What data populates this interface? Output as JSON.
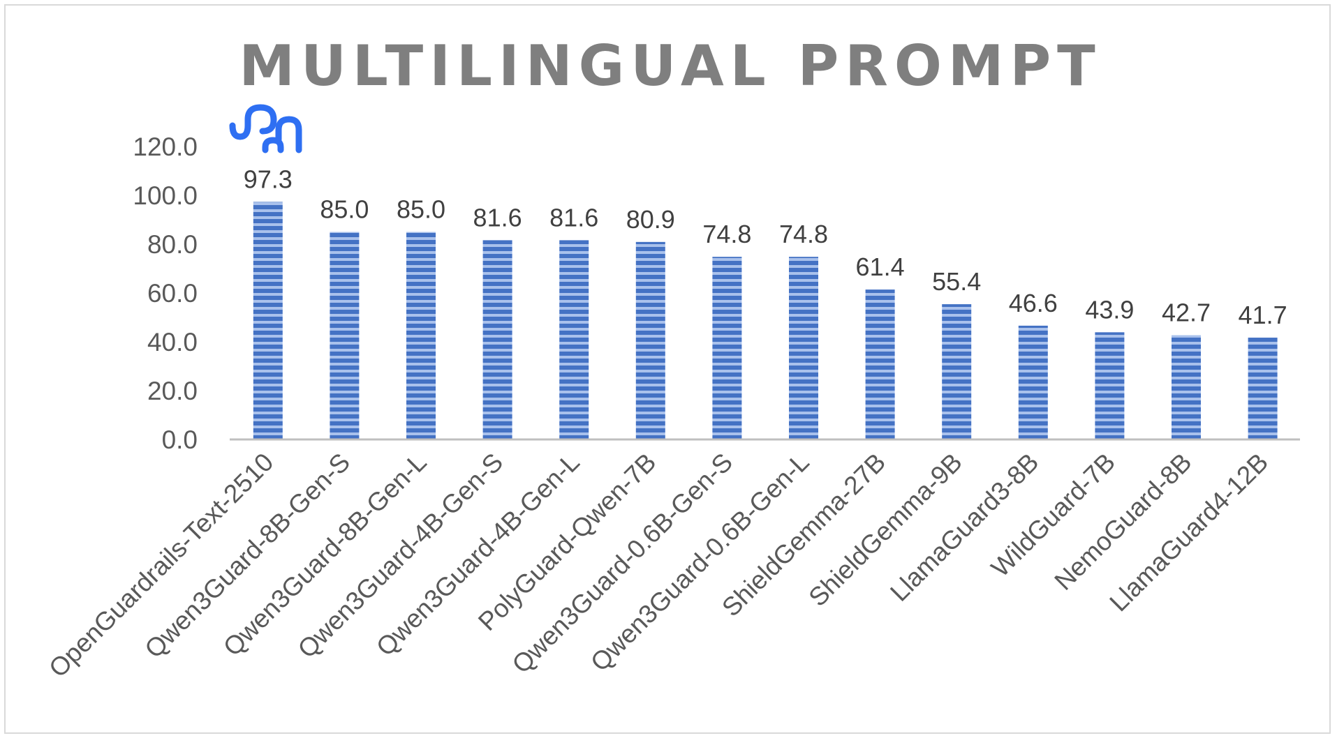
{
  "chart_data": {
    "type": "bar",
    "title": "MULTILINGUAL PROMPT",
    "categories": [
      "OpenGuardrails-Text-2510",
      "Qwen3Guard-8B-Gen-S",
      "Qwen3Guard-8B-Gen-L",
      "Qwen3Guard-4B-Gen-S",
      "Qwen3Guard-4B-Gen-L",
      "PolyGuard-Qwen-7B",
      "Qwen3Guard-0.6B-Gen-S",
      "Qwen3Guard-0.6B-Gen-L",
      "ShieldGemma-27B",
      "ShieldGemma-9B",
      "LlamaGuard3-8B",
      "WildGuard-7B",
      "NemoGuard-8B",
      "LlamaGuard4-12B"
    ],
    "values": [
      97.3,
      85.0,
      85.0,
      81.6,
      81.6,
      80.9,
      74.8,
      74.8,
      61.4,
      55.4,
      46.6,
      43.9,
      42.7,
      41.7
    ],
    "data_labels": [
      "97.3",
      "85.0",
      "85.0",
      "81.6",
      "81.6",
      "80.9",
      "74.8",
      "74.8",
      "61.4",
      "55.4",
      "46.6",
      "43.9",
      "42.7",
      "41.7"
    ],
    "yticks": [
      "0.0",
      "20.0",
      "40.0",
      "60.0",
      "80.0",
      "100.0",
      "120.0"
    ],
    "ylim": [
      0,
      120
    ],
    "xlabel": "",
    "ylabel": "",
    "grid": false,
    "legend": "none",
    "colors": {
      "bar_fill": "#4472c4",
      "bar_stripe": "#a9c1ec",
      "axis_line": "#bfbfbf",
      "logo": "#2e6ff2"
    },
    "logo_icon": "elephant-logo-icon"
  }
}
